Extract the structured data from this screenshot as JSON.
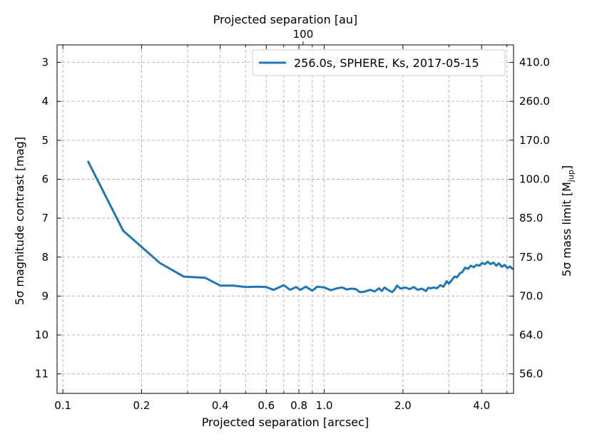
{
  "chart_data": {
    "type": "line",
    "xlabel": "Projected separation [arcsec]",
    "ylabel": "5σ magnitude contrast [mag]",
    "top_xlabel": "Projected separation [au]",
    "right_ylabel": "5σ mass limit [M_jup]",
    "x_scale": "log",
    "xlim": [
      0.095,
      5.3
    ],
    "ylim": [
      11.5,
      2.55
    ],
    "y_inverted": true,
    "grid": true,
    "legend_position": "top-right",
    "x_ticks": [
      {
        "value": 0.1,
        "label": "0.1"
      },
      {
        "value": 0.2,
        "label": "0.2"
      },
      {
        "value": 0.4,
        "label": "0.4"
      },
      {
        "value": 0.6,
        "label": "0.6"
      },
      {
        "value": 0.8,
        "label": "0.8"
      },
      {
        "value": 1.0,
        "label": "1.0"
      },
      {
        "value": 2.0,
        "label": "2.0"
      },
      {
        "value": 4.0,
        "label": "4.0"
      }
    ],
    "x_grid_minor": [
      0.3,
      0.5,
      0.7,
      0.9,
      3.0,
      5.0
    ],
    "top_x_ticks": [
      {
        "value": 0.83,
        "label": "100"
      }
    ],
    "y_ticks": [
      {
        "value": 3,
        "label": "3"
      },
      {
        "value": 4,
        "label": "4"
      },
      {
        "value": 5,
        "label": "5"
      },
      {
        "value": 6,
        "label": "6"
      },
      {
        "value": 7,
        "label": "7"
      },
      {
        "value": 8,
        "label": "8"
      },
      {
        "value": 9,
        "label": "9"
      },
      {
        "value": 10,
        "label": "10"
      },
      {
        "value": 11,
        "label": "11"
      }
    ],
    "right_y_ticks": [
      {
        "value": 3,
        "label": "410.0"
      },
      {
        "value": 4,
        "label": "260.0"
      },
      {
        "value": 5,
        "label": "170.0"
      },
      {
        "value": 6,
        "label": "100.0"
      },
      {
        "value": 7,
        "label": "85.0"
      },
      {
        "value": 8,
        "label": "75.0"
      },
      {
        "value": 9,
        "label": "70.0"
      },
      {
        "value": 10,
        "label": "64.0"
      },
      {
        "value": 11,
        "label": "56.0"
      }
    ],
    "series": [
      {
        "name": "256.0s, SPHERE, Ks, 2017-05-15",
        "color": "#1f77b4",
        "x": [
          0.125,
          0.17,
          0.235,
          0.29,
          0.35,
          0.4,
          0.45,
          0.5,
          0.56,
          0.6,
          0.64,
          0.67,
          0.7,
          0.74,
          0.78,
          0.81,
          0.85,
          0.9,
          0.94,
          1.0,
          1.06,
          1.12,
          1.17,
          1.22,
          1.27,
          1.32,
          1.37,
          1.42,
          1.5,
          1.56,
          1.62,
          1.66,
          1.7,
          1.76,
          1.82,
          1.86,
          1.9,
          1.96,
          2.04,
          2.12,
          2.2,
          2.28,
          2.36,
          2.45,
          2.5,
          2.56,
          2.62,
          2.7,
          2.78,
          2.86,
          2.94,
          3.0,
          3.07,
          3.15,
          3.22,
          3.3,
          3.38,
          3.46,
          3.55,
          3.64,
          3.73,
          3.82,
          3.92,
          4.02,
          4.12,
          4.22,
          4.33,
          4.44,
          4.55,
          4.66,
          4.78,
          4.9,
          5.02,
          5.14,
          5.25
        ],
        "y": [
          5.55,
          7.32,
          8.15,
          8.5,
          8.53,
          8.73,
          8.73,
          8.77,
          8.76,
          8.77,
          8.84,
          8.78,
          8.72,
          8.84,
          8.77,
          8.84,
          8.76,
          8.86,
          8.76,
          8.78,
          8.85,
          8.8,
          8.78,
          8.83,
          8.81,
          8.82,
          8.9,
          8.89,
          8.84,
          8.88,
          8.8,
          8.87,
          8.78,
          8.85,
          8.9,
          8.83,
          8.73,
          8.81,
          8.78,
          8.82,
          8.77,
          8.84,
          8.81,
          8.87,
          8.79,
          8.8,
          8.78,
          8.8,
          8.72,
          8.76,
          8.62,
          8.68,
          8.6,
          8.5,
          8.52,
          8.42,
          8.38,
          8.27,
          8.3,
          8.22,
          8.26,
          8.2,
          8.22,
          8.15,
          8.18,
          8.12,
          8.18,
          8.14,
          8.22,
          8.16,
          8.25,
          8.2,
          8.28,
          8.24,
          8.3
        ]
      }
    ]
  }
}
